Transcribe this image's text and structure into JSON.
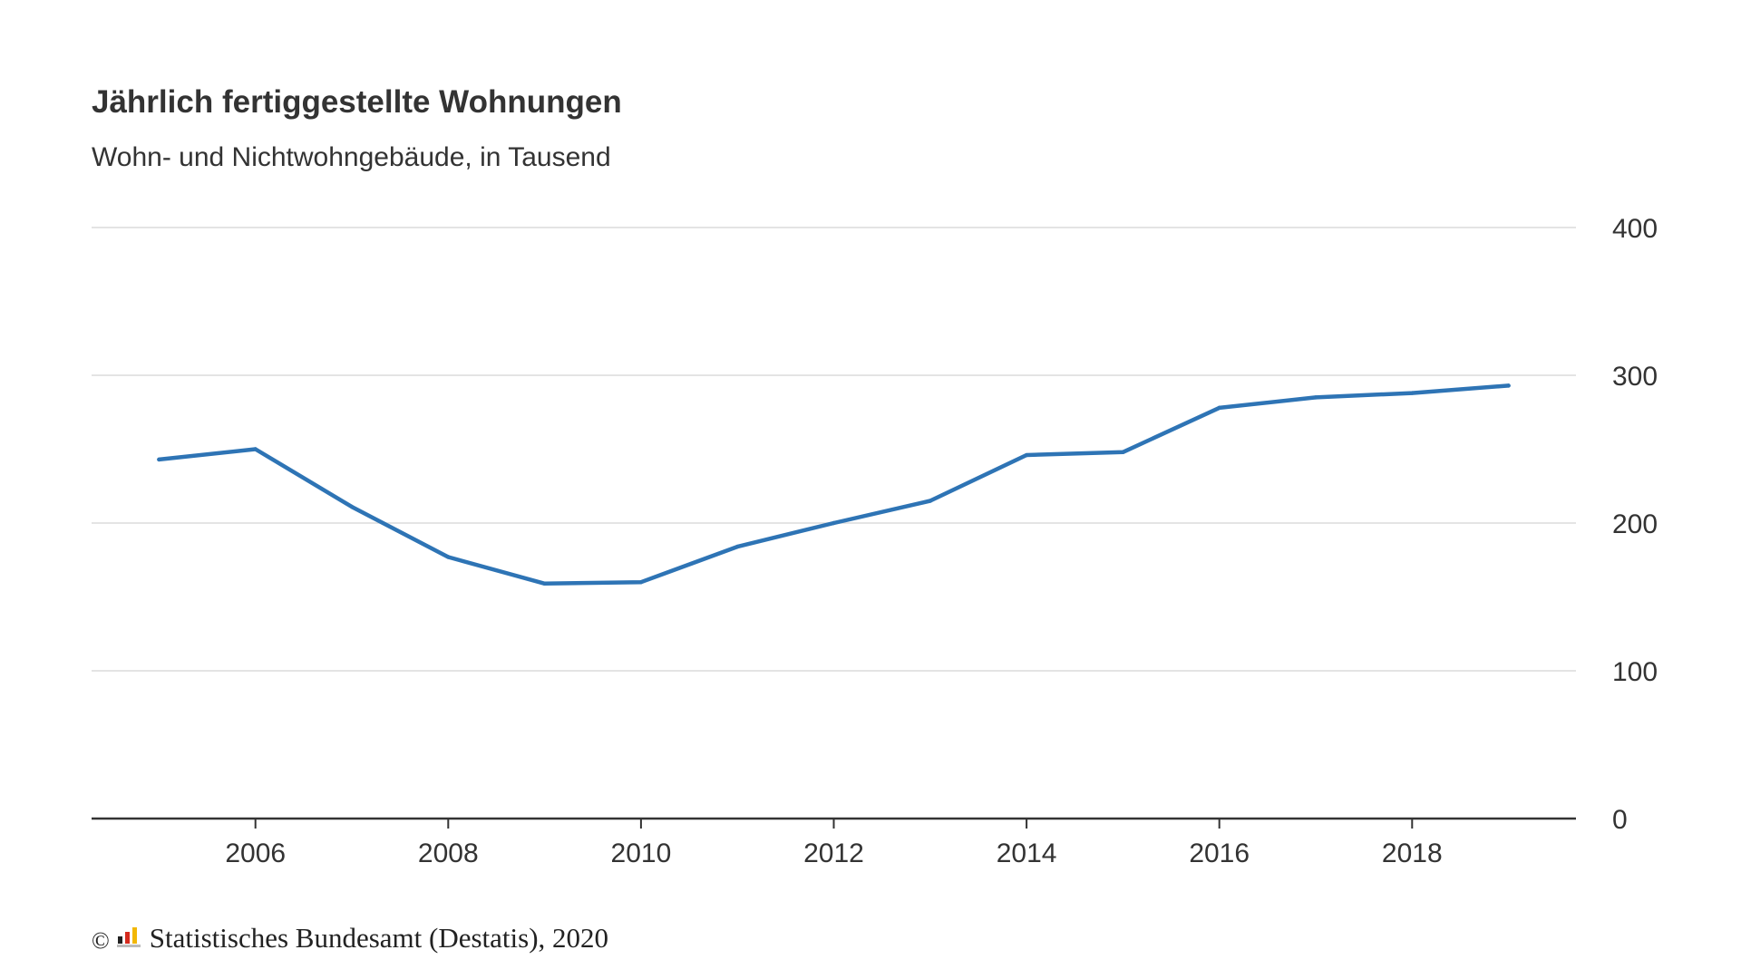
{
  "chart_data": {
    "type": "line",
    "title": "Jährlich fertiggestellte Wohnungen",
    "subtitle": "Wohn- und Nichtwohngebäude, in Tausend",
    "xlabel": "",
    "ylabel": "",
    "xlim": [
      2004.3,
      2019.7
    ],
    "ylim": [
      0,
      400
    ],
    "x_ticks": [
      "2006",
      "2008",
      "2010",
      "2012",
      "2014",
      "2016",
      "2018"
    ],
    "y_ticks": [
      "0",
      "100",
      "200",
      "300",
      "400"
    ],
    "y_axis_side": "right",
    "grid": true,
    "series": [
      {
        "color": "#2e74b5",
        "x": [
          2005,
          2006,
          2007,
          2008,
          2009,
          2010,
          2011,
          2012,
          2013,
          2014,
          2015,
          2016,
          2017,
          2018,
          2019
        ],
        "values": [
          243,
          250,
          211,
          177,
          159,
          160,
          184,
          200,
          215,
          246,
          248,
          278,
          285,
          288,
          293
        ]
      }
    ]
  },
  "footer": {
    "copyright_symbol": "©",
    "logo_icon": "destatis-logo-icon",
    "source": "Statistisches Bundesamt (Destatis), 2020"
  }
}
